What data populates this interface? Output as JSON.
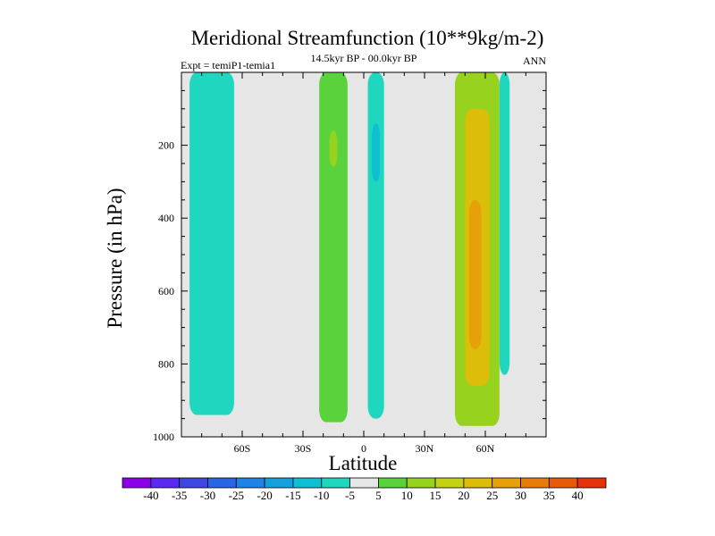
{
  "chart_data": {
    "type": "contour",
    "title": "Meridional Streamfunction (10**9kg/m-2)",
    "subtitle_left": "Expt = temiP1-temia1",
    "subtitle_center": "14.5kyr BP - 00.0kyr BP",
    "subtitle_right": "ANN",
    "xlabel": "Latitude",
    "ylabel": "Pressure (in hPa)",
    "xlim": [
      -90,
      90
    ],
    "ylim": [
      1000,
      0
    ],
    "x_ticks": [
      {
        "value": -60,
        "label": "60S"
      },
      {
        "value": -30,
        "label": "30S"
      },
      {
        "value": 0,
        "label": "0"
      },
      {
        "value": 30,
        "label": "30N"
      },
      {
        "value": 60,
        "label": "60N"
      }
    ],
    "y_ticks": [
      {
        "value": 200,
        "label": "200"
      },
      {
        "value": 400,
        "label": "400"
      },
      {
        "value": 600,
        "label": "600"
      },
      {
        "value": 800,
        "label": "800"
      },
      {
        "value": 1000,
        "label": "1000"
      }
    ],
    "colorbar": {
      "labels": [
        "-40",
        "-35",
        "-30",
        "-25",
        "-20",
        "-15",
        "-10",
        "-5",
        "5",
        "10",
        "15",
        "20",
        "25",
        "30",
        "35",
        "40"
      ],
      "colors": [
        "#8b00e6",
        "#5a28f0",
        "#3d46e0",
        "#2a64e6",
        "#1e82e6",
        "#14a0dc",
        "#10bed2",
        "#1ed7be",
        "#e6e6e6",
        "#5ad23c",
        "#96d21e",
        "#c3d214",
        "#dcbe0a",
        "#e6a00a",
        "#e67d0a",
        "#e65a0a",
        "#e6320a"
      ]
    },
    "regions": [
      {
        "name": "sh-negative-band",
        "level": "-5",
        "lat": [
          -86,
          -64
        ],
        "p": [
          0,
          940
        ]
      },
      {
        "name": "tropical-positive",
        "level": "5",
        "lat": [
          -22,
          -8
        ],
        "p": [
          0,
          960
        ]
      },
      {
        "name": "tropical-positive-core",
        "level": "10",
        "lat": [
          -17,
          -13
        ],
        "p": [
          160,
          260
        ]
      },
      {
        "name": "equatorial-negative",
        "level": "-5",
        "lat": [
          2,
          10
        ],
        "p": [
          0,
          950
        ]
      },
      {
        "name": "equatorial-negative-core",
        "level": "-10",
        "lat": [
          4,
          8
        ],
        "p": [
          140,
          300
        ]
      },
      {
        "name": "nh-positive-band",
        "level": "10",
        "lat": [
          45,
          67
        ],
        "p": [
          0,
          970
        ]
      },
      {
        "name": "nh-positive-core",
        "level": "20",
        "lat": [
          50,
          62
        ],
        "p": [
          100,
          860
        ]
      },
      {
        "name": "nh-positive-max",
        "level": "25",
        "lat": [
          52,
          58
        ],
        "p": [
          350,
          760
        ]
      },
      {
        "name": "nh-negative-edge",
        "level": "-5",
        "lat": [
          67,
          72
        ],
        "p": [
          0,
          830
        ]
      }
    ]
  }
}
